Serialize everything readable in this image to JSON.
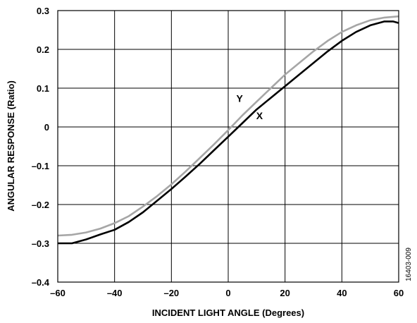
{
  "chart_data": {
    "type": "line",
    "title": "",
    "xlabel": "INCIDENT LIGHT ANGLE (Degrees)",
    "ylabel": "ANGULAR RESPONSE (Ratio)",
    "xlim": [
      -60,
      60
    ],
    "ylim": [
      -0.4,
      0.3
    ],
    "xticks": [
      -60,
      -40,
      -20,
      0,
      20,
      40,
      60
    ],
    "yticks": [
      -0.4,
      -0.3,
      -0.2,
      -0.1,
      0,
      0.1,
      0.2,
      0.3
    ],
    "xtick_labels": [
      "–60",
      "–40",
      "–20",
      "0",
      "20",
      "40",
      "60"
    ],
    "ytick_labels": [
      "–0.4",
      "–0.3",
      "–0.2",
      "–0.1",
      "0",
      "0.1",
      "0.2",
      "0.3"
    ],
    "grid": true,
    "legend": "none",
    "figure_id": "16403-009",
    "series": [
      {
        "name": "X",
        "color": "#000000",
        "label_at": [
          11,
          0.02
        ],
        "x": [
          -60,
          -55,
          -50,
          -45,
          -40,
          -35,
          -30,
          -25,
          -20,
          -15,
          -10,
          -5,
          0,
          5,
          10,
          15,
          20,
          25,
          30,
          35,
          40,
          45,
          50,
          55,
          58,
          60
        ],
        "y": [
          -0.3,
          -0.3,
          -0.29,
          -0.277,
          -0.265,
          -0.245,
          -0.22,
          -0.19,
          -0.16,
          -0.128,
          -0.095,
          -0.06,
          -0.025,
          0.01,
          0.045,
          0.075,
          0.105,
          0.135,
          0.165,
          0.195,
          0.222,
          0.245,
          0.262,
          0.272,
          0.272,
          0.268
        ]
      },
      {
        "name": "Y",
        "color": "#a6a6a6",
        "label_at": [
          4,
          0.065
        ],
        "x": [
          -60,
          -55,
          -50,
          -45,
          -40,
          -35,
          -30,
          -25,
          -20,
          -15,
          -10,
          -5,
          0,
          5,
          10,
          15,
          20,
          25,
          30,
          35,
          40,
          45,
          50,
          55,
          60
        ],
        "y": [
          -0.28,
          -0.278,
          -0.272,
          -0.262,
          -0.248,
          -0.23,
          -0.205,
          -0.178,
          -0.148,
          -0.115,
          -0.08,
          -0.045,
          -0.008,
          0.03,
          0.065,
          0.1,
          0.135,
          0.165,
          0.195,
          0.222,
          0.245,
          0.262,
          0.275,
          0.282,
          0.285
        ]
      }
    ]
  }
}
